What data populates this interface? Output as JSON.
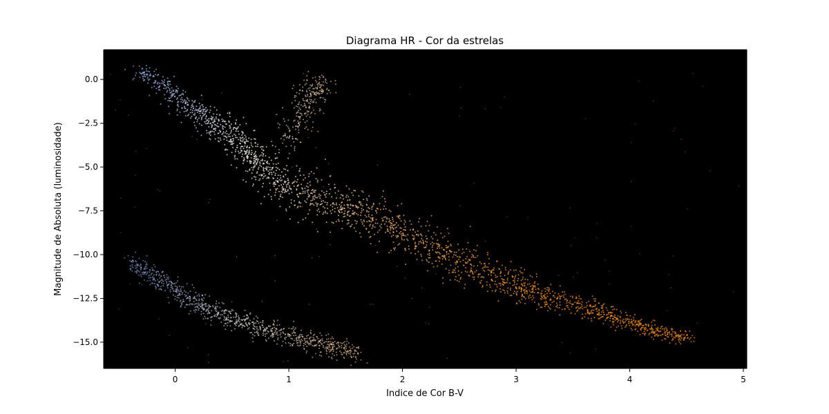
{
  "chart_data": {
    "type": "scatter",
    "title": "Diagrama HR - Cor da estrelas",
    "xlabel": "Indice de Cor B-V",
    "ylabel": "Magnitude de Absoluta (luminosidade)",
    "xlim": [
      -0.63,
      5.03
    ],
    "ylim": [
      -16.5,
      1.7
    ],
    "y_inverted": false,
    "x_ticks": [
      0,
      1,
      2,
      3,
      4,
      5
    ],
    "x_tick_labels": [
      "0",
      "1",
      "2",
      "3",
      "4",
      "5"
    ],
    "y_ticks": [
      0.0,
      -2.5,
      -5.0,
      -7.5,
      -10.0,
      -12.5,
      -15.0
    ],
    "y_tick_labels": [
      "0.0",
      "−2.5",
      "−5.0",
      "−7.5",
      "−10.0",
      "−12.5",
      "−15.0"
    ],
    "background_color": "#000000",
    "grid": false,
    "legend": "none",
    "colormap_stops": [
      {
        "x": -0.3,
        "color": "#8ea6e0"
      },
      {
        "x": 0.2,
        "color": "#c9d4ee"
      },
      {
        "x": 0.6,
        "color": "#f7f2ec"
      },
      {
        "x": 1.0,
        "color": "#fbe6d2"
      },
      {
        "x": 1.6,
        "color": "#f9c790"
      },
      {
        "x": 2.4,
        "color": "#f8a650"
      },
      {
        "x": 3.2,
        "color": "#f7962a"
      },
      {
        "x": 4.5,
        "color": "#f08a20"
      }
    ],
    "series": [
      {
        "group": "main-sequence",
        "x": [
          -0.3,
          0.0,
          0.3,
          0.55,
          0.75,
          1.0,
          1.3,
          1.7,
          2.1,
          2.5,
          2.9,
          3.3,
          3.7,
          4.1,
          4.5
        ],
        "y": [
          0.5,
          -1.0,
          -2.3,
          -3.5,
          -4.9,
          -6.1,
          -6.9,
          -7.8,
          -9.0,
          -10.5,
          -11.6,
          -12.4,
          -13.2,
          -14.1,
          -14.8
        ],
        "n_points": 2200
      },
      {
        "group": "giant-branch",
        "x": [
          1.0,
          1.1,
          1.2,
          1.3
        ],
        "y": [
          -3.6,
          -2.0,
          -0.6,
          -0.4
        ],
        "n_points": 260
      },
      {
        "group": "white-dwarfs",
        "x": [
          -0.4,
          -0.1,
          0.2,
          0.5,
          0.8,
          1.1,
          1.4,
          1.6
        ],
        "y": [
          -10.4,
          -11.6,
          -12.8,
          -13.7,
          -14.3,
          -14.8,
          -15.3,
          -15.7
        ],
        "n_points": 900
      },
      {
        "group": "scattered",
        "x_range": [
          -0.6,
          5.0
        ],
        "y_range": [
          -16.3,
          1.2
        ],
        "n_points": 120
      }
    ]
  }
}
